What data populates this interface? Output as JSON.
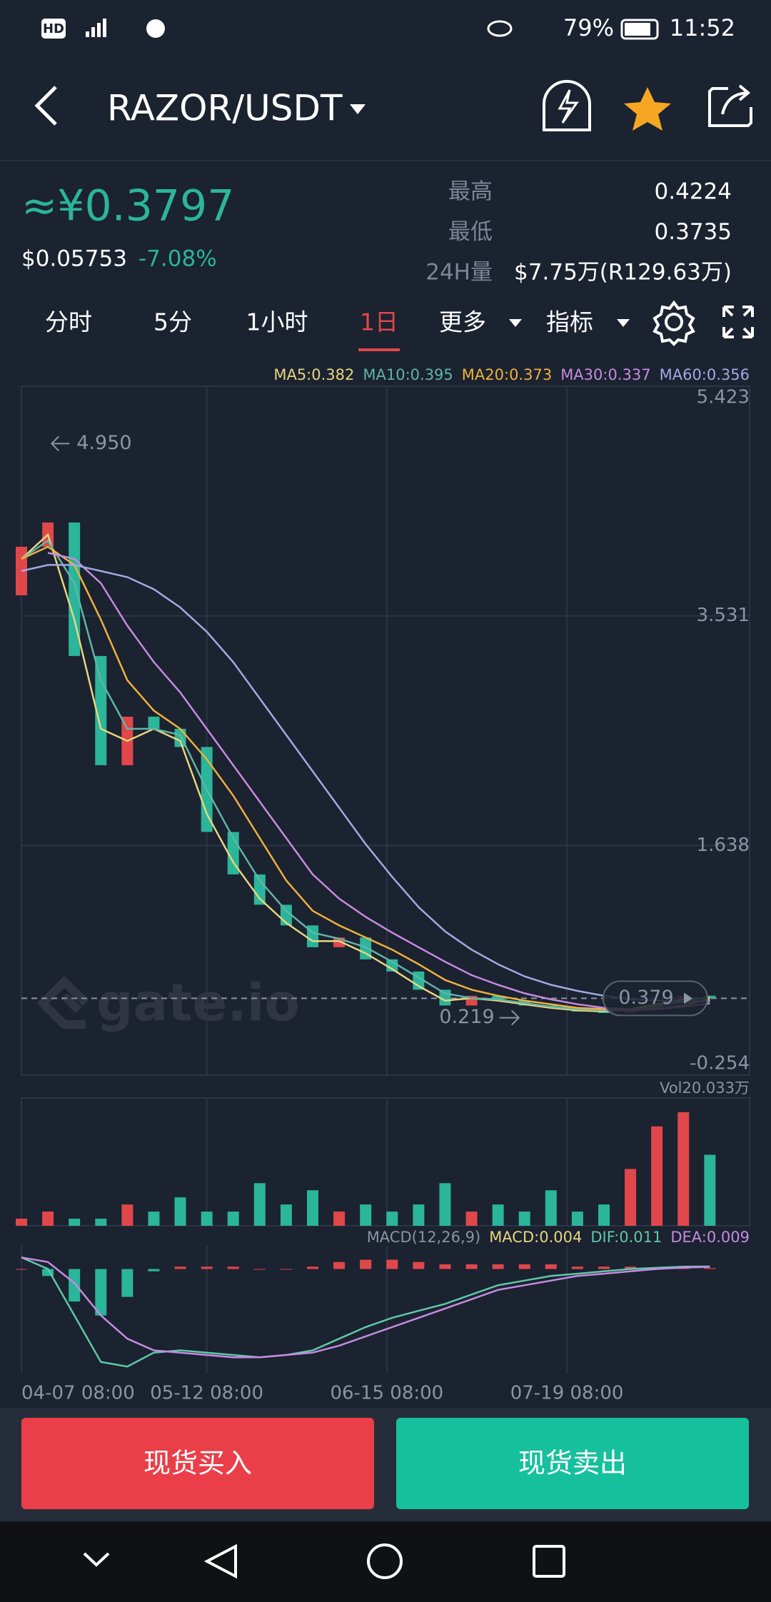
{
  "status_bar": {
    "badge": "HD",
    "battery": "79%",
    "time": "11:52"
  },
  "header": {
    "pair": "RAZOR/USDT"
  },
  "ticker": {
    "price": "≈¥0.3797",
    "usd_price": "$0.05753",
    "change": "-7.08%",
    "stats": [
      {
        "label": "最高",
        "value": "0.4224"
      },
      {
        "label": "最低",
        "value": "0.3735"
      },
      {
        "label": "24H量",
        "value": "$7.75万(R129.63万)"
      }
    ]
  },
  "tabs": [
    "分时",
    "5分",
    "1小时",
    "1日",
    "更多",
    "指标"
  ],
  "active_tab": 3,
  "chart_data": [
    {
      "type": "candlestick",
      "up_color": "#e0474b",
      "down_color": "#2bb59a",
      "x": [
        0,
        5,
        10,
        15,
        20,
        25,
        30,
        35,
        40,
        45,
        50,
        55,
        60,
        65,
        70,
        75,
        80,
        85,
        90,
        95,
        100,
        105,
        110,
        115,
        120,
        125,
        130
      ],
      "open": [
        3.7,
        4.1,
        4.3,
        3.2,
        2.3,
        2.7,
        2.6,
        2.45,
        1.75,
        1.4,
        1.15,
        0.98,
        0.8,
        0.88,
        0.7,
        0.6,
        0.45,
        0.32,
        0.4,
        0.36,
        0.32,
        0.3,
        0.27,
        0.26,
        0.3,
        0.34,
        0.4
      ],
      "close": [
        4.1,
        4.3,
        3.2,
        2.3,
        2.7,
        2.6,
        2.45,
        1.75,
        1.4,
        1.15,
        0.98,
        0.8,
        0.88,
        0.7,
        0.6,
        0.45,
        0.32,
        0.4,
        0.36,
        0.32,
        0.3,
        0.27,
        0.26,
        0.3,
        0.34,
        0.4,
        0.379
      ],
      "series": [
        {
          "name": "MA5:0.382",
          "color": "#e8d57e",
          "values": [
            4.0,
            4.2,
            3.5,
            2.6,
            2.5,
            2.6,
            2.5,
            1.9,
            1.5,
            1.2,
            1.0,
            0.85,
            0.85,
            0.75,
            0.62,
            0.48,
            0.36,
            0.38,
            0.36,
            0.33,
            0.3,
            0.28,
            0.27,
            0.29,
            0.33,
            0.37,
            0.382
          ]
        },
        {
          "name": "MA10:0.395",
          "color": "#5fb5a8",
          "values": [
            4.0,
            4.15,
            3.8,
            3.0,
            2.6,
            2.6,
            2.55,
            2.1,
            1.7,
            1.35,
            1.1,
            0.92,
            0.87,
            0.8,
            0.68,
            0.55,
            0.42,
            0.38,
            0.37,
            0.34,
            0.31,
            0.29,
            0.28,
            0.28,
            0.31,
            0.35,
            0.395
          ]
        },
        {
          "name": "MA20:0.373",
          "color": "#f0b13c",
          "values": [
            4.0,
            4.1,
            3.95,
            3.5,
            3.0,
            2.75,
            2.6,
            2.35,
            2.05,
            1.7,
            1.35,
            1.1,
            0.98,
            0.88,
            0.78,
            0.66,
            0.53,
            0.45,
            0.4,
            0.36,
            0.33,
            0.3,
            0.29,
            0.28,
            0.29,
            0.32,
            0.373
          ]
        },
        {
          "name": "MA30:0.337",
          "color": "#c68be0",
          "values": [
            null,
            4.05,
            4.0,
            3.8,
            3.45,
            3.15,
            2.9,
            2.6,
            2.3,
            2.0,
            1.7,
            1.4,
            1.2,
            1.05,
            0.92,
            0.8,
            0.68,
            0.57,
            0.49,
            0.42,
            0.37,
            0.33,
            0.3,
            0.29,
            0.29,
            0.31,
            0.337
          ]
        },
        {
          "name": "MA60:0.356",
          "color": "#a3a9e0",
          "values": [
            3.9,
            3.95,
            3.95,
            3.9,
            3.85,
            3.75,
            3.6,
            3.4,
            3.15,
            2.85,
            2.55,
            2.25,
            1.95,
            1.65,
            1.38,
            1.13,
            0.93,
            0.78,
            0.66,
            0.56,
            0.49,
            0.44,
            0.4,
            0.37,
            0.36,
            0.35,
            0.356
          ]
        }
      ],
      "xlim": [
        0,
        137.5
      ],
      "xticks": [
        {
          "value": 0,
          "label": "04-07 08:00"
        },
        {
          "value": 35,
          "label": "05-12 08:00"
        },
        {
          "value": 69,
          "label": "06-15 08:00"
        },
        {
          "value": 103,
          "label": "07-19 08:00"
        }
      ],
      "ylim": [
        -0.254,
        5.423
      ],
      "yticks": [
        5.423,
        3.531,
        1.638,
        -0.254
      ],
      "grid": true,
      "high_marker": {
        "x": 3,
        "value": 4.95,
        "label": "4.950"
      },
      "low_marker": {
        "x": 95,
        "value": 0.219,
        "label": "0.219"
      },
      "last_price": {
        "value": 0.379,
        "label": "0.379"
      },
      "watermark": "gate.io"
    },
    {
      "type": "bar",
      "label": "Vol20.033万",
      "x": [
        0,
        5,
        10,
        15,
        20,
        25,
        30,
        35,
        40,
        45,
        50,
        55,
        60,
        65,
        70,
        75,
        80,
        85,
        90,
        95,
        100,
        105,
        110,
        115,
        120,
        125,
        130
      ],
      "values": [
        1,
        2,
        1,
        1,
        3,
        2,
        4,
        2,
        2,
        6,
        3,
        5,
        2,
        3,
        2,
        3,
        6,
        2,
        3,
        2,
        5,
        2,
        3,
        8,
        14,
        16,
        10
      ],
      "ylim": [
        0,
        18
      ]
    },
    {
      "type": "macd",
      "label": "MACD(12,26,9)",
      "x": [
        0,
        5,
        10,
        15,
        20,
        25,
        30,
        35,
        40,
        45,
        50,
        55,
        60,
        65,
        70,
        75,
        80,
        85,
        90,
        95,
        100,
        105,
        110,
        115,
        120,
        125,
        130
      ],
      "series": [
        {
          "name": "MACD:0.004",
          "color": "#e8d57e",
          "values": [
            0,
            -0.03,
            -0.14,
            -0.2,
            -0.12,
            -0.01,
            0.01,
            0.01,
            0.01,
            0.0,
            0.0,
            0.01,
            0.03,
            0.04,
            0.04,
            0.03,
            0.02,
            0.02,
            0.02,
            0.02,
            0.02,
            0.01,
            0.01,
            0.01,
            0.005,
            0.004,
            0.004
          ]
        },
        {
          "name": "DIF:0.011",
          "color": "#5fc8a6",
          "values": [
            0.05,
            0.0,
            -0.2,
            -0.4,
            -0.42,
            -0.36,
            -0.35,
            -0.36,
            -0.37,
            -0.38,
            -0.37,
            -0.35,
            -0.3,
            -0.25,
            -0.21,
            -0.18,
            -0.15,
            -0.11,
            -0.07,
            -0.05,
            -0.03,
            -0.02,
            -0.01,
            0.0,
            0.005,
            0.01,
            0.011
          ]
        },
        {
          "name": "DEA:0.009",
          "color": "#c68be0",
          "values": [
            0.05,
            0.03,
            -0.06,
            -0.2,
            -0.3,
            -0.35,
            -0.36,
            -0.37,
            -0.38,
            -0.38,
            -0.37,
            -0.36,
            -0.33,
            -0.29,
            -0.25,
            -0.21,
            -0.17,
            -0.13,
            -0.09,
            -0.07,
            -0.05,
            -0.03,
            -0.02,
            -0.01,
            0.0,
            0.006,
            0.009
          ]
        }
      ],
      "ylim": [
        -0.45,
        0.1
      ]
    }
  ],
  "buttons": {
    "buy": "现货买入",
    "sell": "现货卖出"
  }
}
